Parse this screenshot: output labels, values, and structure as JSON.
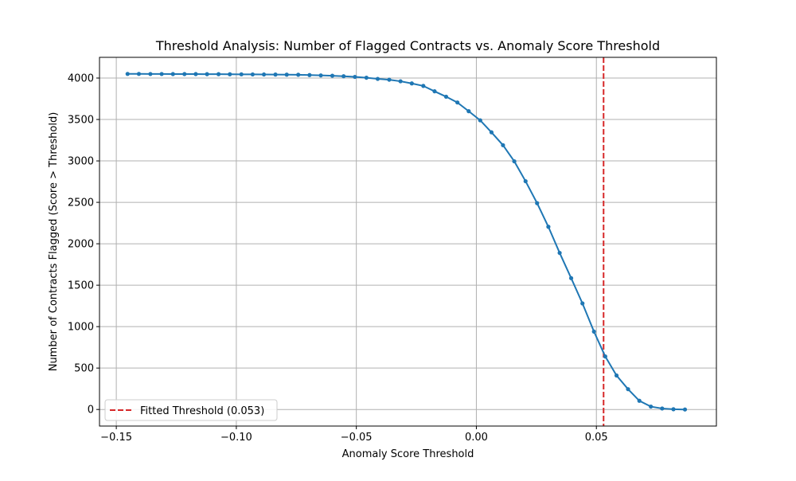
{
  "chart_data": {
    "type": "line",
    "title": "Threshold Analysis: Number of Flagged Contracts vs. Anomaly Score Threshold",
    "xlabel": "Anomaly Score Threshold",
    "ylabel": "Number of Contracts Flagged (Score > Threshold)",
    "xlim": [
      -0.157,
      0.1
    ],
    "ylim": [
      -200,
      4250
    ],
    "xticks": [
      -0.15,
      -0.1,
      -0.05,
      0.0,
      0.05
    ],
    "xtick_labels": [
      "−0.15",
      "−0.10",
      "−0.05",
      "0.00",
      "0.05"
    ],
    "yticks": [
      0,
      500,
      1000,
      1500,
      2000,
      2500,
      3000,
      3500,
      4000
    ],
    "ytick_labels": [
      "0",
      "500",
      "1000",
      "1500",
      "2000",
      "2500",
      "3000",
      "3500",
      "4000"
    ],
    "grid": true,
    "legend_position": "lower-left",
    "series": [
      {
        "color": "#1f77b4",
        "marker": "circle",
        "x": [
          -0.1453,
          -0.1406,
          -0.1358,
          -0.1311,
          -0.1264,
          -0.1216,
          -0.1169,
          -0.1122,
          -0.1074,
          -0.1027,
          -0.0979,
          -0.0932,
          -0.0885,
          -0.0837,
          -0.079,
          -0.0742,
          -0.0695,
          -0.0648,
          -0.06,
          -0.0553,
          -0.0506,
          -0.0458,
          -0.0411,
          -0.0363,
          -0.0316,
          -0.0269,
          -0.0221,
          -0.0174,
          -0.0126,
          -0.0079,
          -0.0032,
          0.0016,
          0.0063,
          0.0111,
          0.0158,
          0.0205,
          0.0253,
          0.03,
          0.0347,
          0.0395,
          0.0442,
          0.049,
          0.0537,
          0.0584,
          0.0632,
          0.0679,
          0.0727,
          0.0774,
          0.0821,
          0.0869
        ],
        "y": [
          4050,
          4050,
          4049,
          4049,
          4048,
          4048,
          4048,
          4047,
          4047,
          4046,
          4045,
          4044,
          4043,
          4042,
          4041,
          4040,
          4036,
          4032,
          4028,
          4022,
          4014,
          4004,
          3990,
          3980,
          3961,
          3935,
          3905,
          3840,
          3775,
          3705,
          3600,
          3490,
          3345,
          3190,
          2995,
          2755,
          2490,
          2205,
          1890,
          1585,
          1280,
          940,
          640,
          410,
          245,
          105,
          35,
          12,
          3,
          0
        ]
      }
    ],
    "threshold": {
      "x": 0.053,
      "color": "#d62728",
      "style": "dashed",
      "label": "Fitted Threshold (0.053)"
    }
  }
}
